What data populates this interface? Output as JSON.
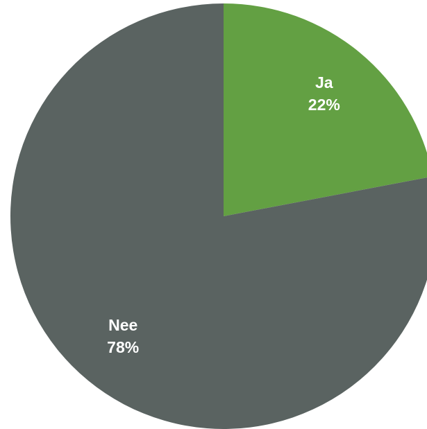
{
  "chart_data": {
    "type": "pie",
    "categories": [
      "Ja",
      "Nee"
    ],
    "values": [
      22,
      78
    ],
    "value_labels": [
      "22%",
      "78%"
    ],
    "colors": [
      "#63a043",
      "#5a6361"
    ]
  }
}
